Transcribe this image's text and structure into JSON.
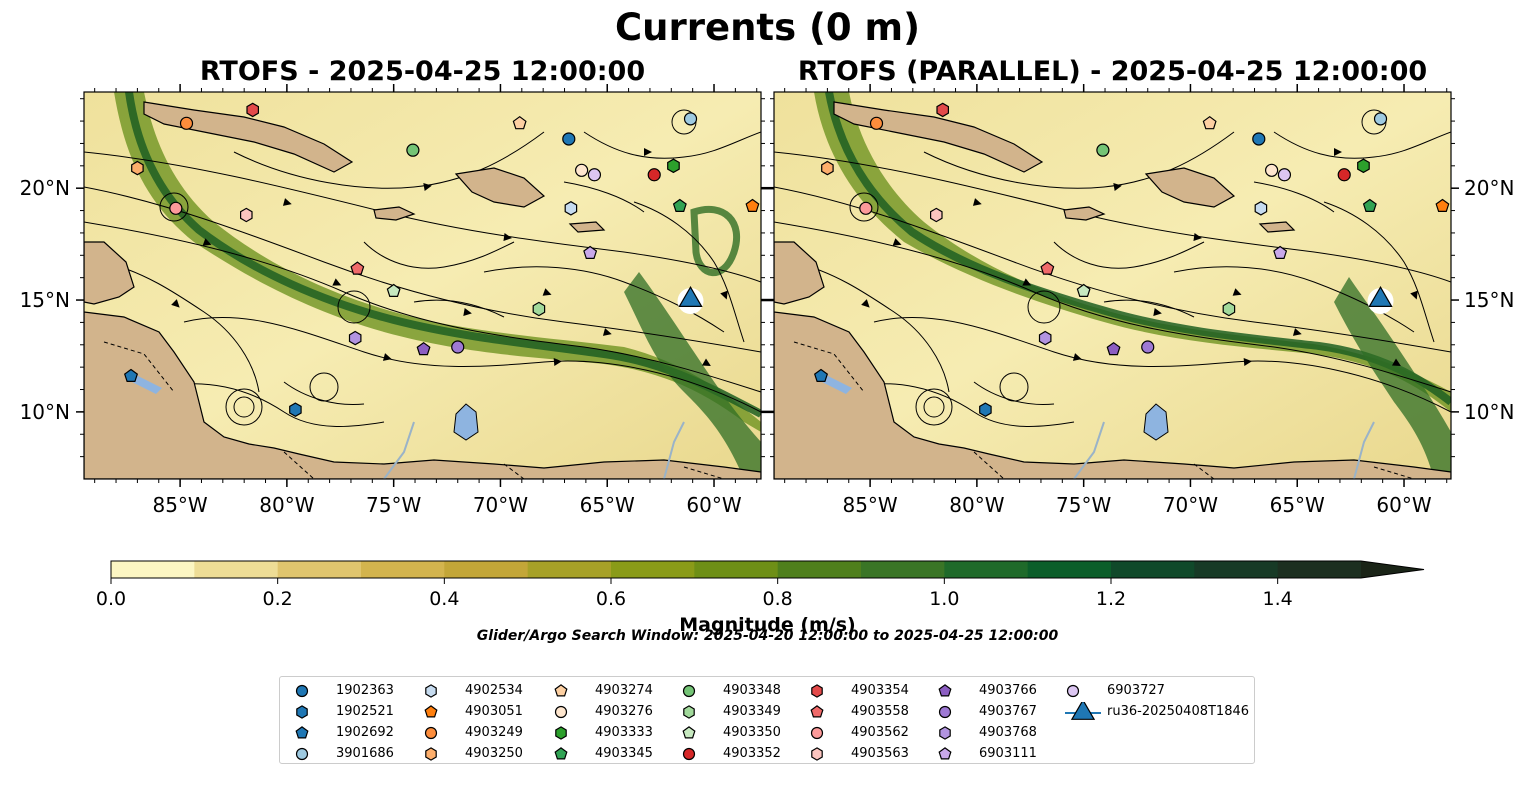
{
  "title": "Currents (0 m)",
  "panels": [
    {
      "id": "rtofs",
      "title": "RTOFS - 2025-04-25 12:00:00"
    },
    {
      "id": "rtofs-parallel",
      "title": "RTOFS (PARALLEL) - 2025-04-25 12:00:00"
    }
  ],
  "axes": {
    "lon_ticks": [
      "85°W",
      "80°W",
      "75°W",
      "70°W",
      "65°W",
      "60°W"
    ],
    "lat_ticks": [
      "20°N",
      "15°N",
      "10°N"
    ]
  },
  "colorbar": {
    "label": "Magnitude (m/s)",
    "ticks": [
      "0.0",
      "0.2",
      "0.4",
      "0.6",
      "0.8",
      "1.0",
      "1.2",
      "1.4"
    ],
    "colors": [
      "#fcf6c3",
      "#eedd96",
      "#e0c56e",
      "#d3b44e",
      "#c3a638",
      "#a7a128",
      "#8a9b18",
      "#6e8f16",
      "#4f7f1c",
      "#3a7526",
      "#1f6a2a",
      "#0b5e2a",
      "#10492a",
      "#173a26",
      "#1c2f20",
      "#1a2417"
    ]
  },
  "search_window": "Glider/Argo Search Window: 2025-04-20 12:00:00 to 2025-04-25 12:00:00",
  "legend": [
    {
      "label": "1902363",
      "marker": "circle",
      "color": "#1f77b4"
    },
    {
      "label": "1902521",
      "marker": "hexagon",
      "color": "#1f77b4"
    },
    {
      "label": "1902692",
      "marker": "pentagon",
      "color": "#1f77b4"
    },
    {
      "label": "3901686",
      "marker": "circle",
      "color": "#9ecae1"
    },
    {
      "label": "4902534",
      "marker": "hexagon",
      "color": "#c6dbef"
    },
    {
      "label": "4903051",
      "marker": "pentagon",
      "color": "#ff7f0e"
    },
    {
      "label": "4903249",
      "marker": "circle",
      "color": "#fd8d3c"
    },
    {
      "label": "4903250",
      "marker": "hexagon",
      "color": "#fdae6b"
    },
    {
      "label": "4903274",
      "marker": "pentagon",
      "color": "#fdd0a2"
    },
    {
      "label": "4903276",
      "marker": "circle",
      "color": "#fee6ce"
    },
    {
      "label": "4903333",
      "marker": "hexagon",
      "color": "#2ca02c"
    },
    {
      "label": "4903345",
      "marker": "pentagon",
      "color": "#31a354"
    },
    {
      "label": "4903348",
      "marker": "circle",
      "color": "#74c476"
    },
    {
      "label": "4903349",
      "marker": "hexagon",
      "color": "#a1d99b"
    },
    {
      "label": "4903350",
      "marker": "pentagon",
      "color": "#c7e9c0"
    },
    {
      "label": "4903352",
      "marker": "circle",
      "color": "#d62728"
    },
    {
      "label": "4903354",
      "marker": "hexagon",
      "color": "#e34a4a"
    },
    {
      "label": "4903558",
      "marker": "pentagon",
      "color": "#f06a6a"
    },
    {
      "label": "4903562",
      "marker": "circle",
      "color": "#fc9a9a"
    },
    {
      "label": "4903563",
      "marker": "hexagon",
      "color": "#fcc5c0"
    },
    {
      "label": "4903766",
      "marker": "pentagon",
      "color": "#8c5ec2"
    },
    {
      "label": "4903767",
      "marker": "circle",
      "color": "#9e79d4"
    },
    {
      "label": "4903768",
      "marker": "hexagon",
      "color": "#b294e0"
    },
    {
      "label": "6903111",
      "marker": "pentagon",
      "color": "#c9a8ea"
    },
    {
      "label": "6903727",
      "marker": "circle",
      "color": "#dcc6f2"
    },
    {
      "label": "ru36-20250408T1846",
      "marker": "triangle",
      "color": "#1f77b4"
    }
  ],
  "platforms": [
    {
      "id": "1902363",
      "lon": -66.8,
      "lat": 22.2
    },
    {
      "id": "1902521",
      "lon": -79.6,
      "lat": 10.1
    },
    {
      "id": "1902692",
      "lon": -87.3,
      "lat": 11.6
    },
    {
      "id": "3901686",
      "lon": -61.1,
      "lat": 23.1
    },
    {
      "id": "4902534",
      "lon": -66.7,
      "lat": 19.1
    },
    {
      "id": "4903051",
      "lon": -58.2,
      "lat": 19.2
    },
    {
      "id": "4903249",
      "lon": -84.7,
      "lat": 22.9
    },
    {
      "id": "4903250",
      "lon": -87.0,
      "lat": 20.9
    },
    {
      "id": "4903274",
      "lon": -69.1,
      "lat": 22.9
    },
    {
      "id": "4903276",
      "lon": -66.2,
      "lat": 20.8
    },
    {
      "id": "4903333",
      "lon": -61.9,
      "lat": 21.0
    },
    {
      "id": "4903345",
      "lon": -61.6,
      "lat": 19.2
    },
    {
      "id": "4903348",
      "lon": -74.1,
      "lat": 21.7
    },
    {
      "id": "4903349",
      "lon": -68.2,
      "lat": 14.6
    },
    {
      "id": "4903350",
      "lon": -75.0,
      "lat": 15.4
    },
    {
      "id": "4903352",
      "lon": -62.8,
      "lat": 20.6
    },
    {
      "id": "4903354",
      "lon": -81.6,
      "lat": 23.5
    },
    {
      "id": "4903558",
      "lon": -76.7,
      "lat": 16.4
    },
    {
      "id": "4903562",
      "lon": -85.2,
      "lat": 19.1
    },
    {
      "id": "4903563",
      "lon": -81.9,
      "lat": 18.8
    },
    {
      "id": "4903766",
      "lon": -73.6,
      "lat": 12.8
    },
    {
      "id": "4903767",
      "lon": -72.0,
      "lat": 12.9
    },
    {
      "id": "4903768",
      "lon": -76.8,
      "lat": 13.3
    },
    {
      "id": "6903111",
      "lon": -65.8,
      "lat": 17.1
    },
    {
      "id": "6903727",
      "lon": -65.6,
      "lat": 20.6
    },
    {
      "id": "ru36-20250408T1846",
      "lon": -61.1,
      "lat": 15.0
    }
  ]
}
